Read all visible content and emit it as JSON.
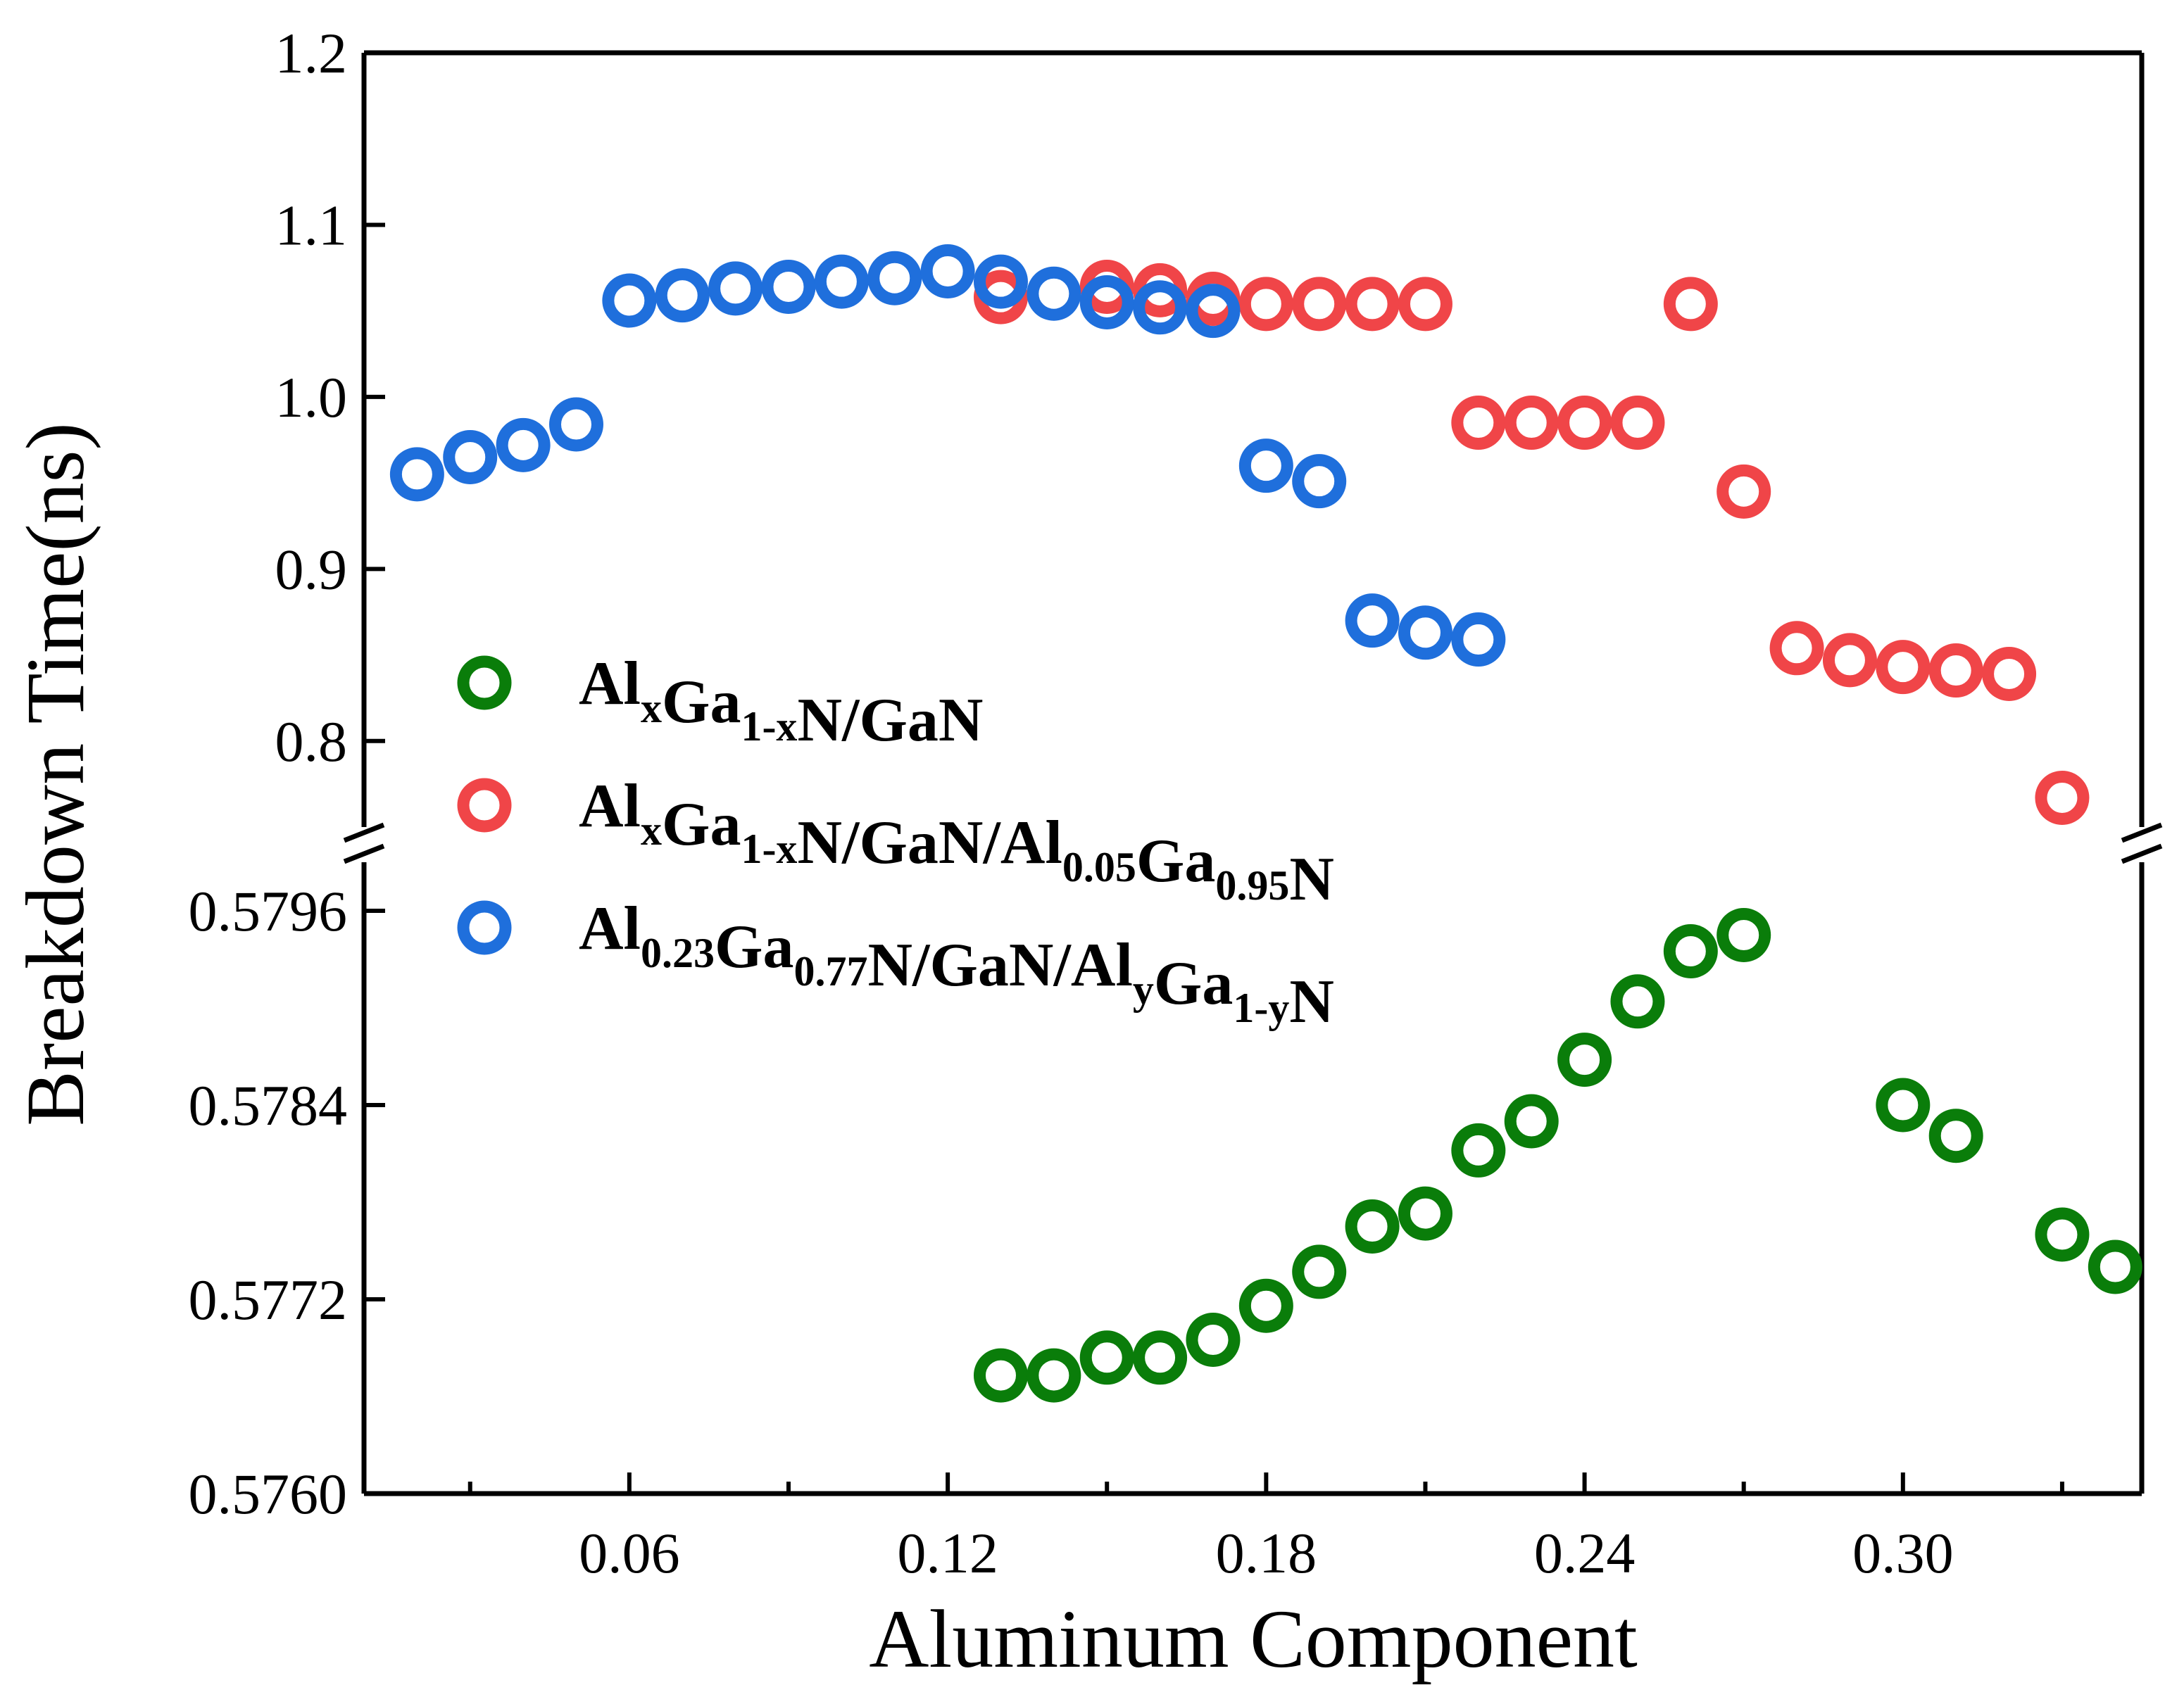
{
  "chart_data": {
    "type": "scatter",
    "xlabel": "Aluminum Component",
    "ylabel": "Breakdown Time(ns)",
    "xlim": [
      0.01,
      0.345
    ],
    "x_ticks": [
      {
        "value": 0.06,
        "label": "0.06"
      },
      {
        "value": 0.12,
        "label": "0.12"
      },
      {
        "value": 0.18,
        "label": "0.18"
      },
      {
        "value": 0.24,
        "label": "0.24"
      },
      {
        "value": 0.3,
        "label": "0.30"
      }
    ],
    "x_minor_ticks": [
      0.03,
      0.09,
      0.15,
      0.21,
      0.27,
      0.33
    ],
    "y_broken_axis": true,
    "upper_ylim": [
      0.75,
      1.2
    ],
    "upper_y_ticks": [
      {
        "value": 0.8,
        "label": "0.8"
      },
      {
        "value": 0.9,
        "label": "0.9"
      },
      {
        "value": 1.0,
        "label": "1.0"
      },
      {
        "value": 1.1,
        "label": "1.1"
      },
      {
        "value": 1.2,
        "label": "1.2"
      }
    ],
    "lower_ylim": [
      0.576,
      0.5799
    ],
    "lower_y_ticks": [
      {
        "value": 0.576,
        "label": "0.5760"
      },
      {
        "value": 0.5772,
        "label": "0.5772"
      },
      {
        "value": 0.5784,
        "label": "0.5784"
      },
      {
        "value": 0.5796,
        "label": "0.5796"
      }
    ],
    "series": [
      {
        "name": "AlxGa1-xN/GaN",
        "legend_parts": [
          {
            "text": "Al",
            "sub": false
          },
          {
            "text": "x",
            "sub": true
          },
          {
            "text": "Ga",
            "sub": false
          },
          {
            "text": "1-x",
            "sub": true
          },
          {
            "text": "N/GaN",
            "sub": false
          }
        ],
        "color": "#0a7d0a",
        "panel": "lower",
        "x": [
          0.13,
          0.14,
          0.15,
          0.16,
          0.17,
          0.18,
          0.19,
          0.2,
          0.21,
          0.22,
          0.23,
          0.24,
          0.25,
          0.26,
          0.27,
          0.3,
          0.31,
          0.33,
          0.34
        ],
        "y": [
          0.57673,
          0.57673,
          0.57684,
          0.57684,
          0.57695,
          0.57716,
          0.57737,
          0.57765,
          0.57773,
          0.57812,
          0.5783,
          0.57868,
          0.57904,
          0.57935,
          0.57945,
          0.5784,
          0.57821,
          0.5776,
          0.5774
        ]
      },
      {
        "name": "AlxGa1-xN/GaN/Al0.05Ga0.95N",
        "legend_parts": [
          {
            "text": "Al",
            "sub": false
          },
          {
            "text": "x",
            "sub": true
          },
          {
            "text": "Ga",
            "sub": false
          },
          {
            "text": "1-x",
            "sub": true
          },
          {
            "text": "N/GaN/Al",
            "sub": false
          },
          {
            "text": "0.05",
            "sub": true
          },
          {
            "text": "Ga",
            "sub": false
          },
          {
            "text": "0.95",
            "sub": true
          },
          {
            "text": "N",
            "sub": false
          }
        ],
        "color": "#f04548",
        "panel": "upper",
        "x": [
          0.13,
          0.15,
          0.16,
          0.17,
          0.18,
          0.19,
          0.2,
          0.21,
          0.22,
          0.23,
          0.24,
          0.25,
          0.26,
          0.27,
          0.28,
          0.29,
          0.3,
          0.31,
          0.32,
          0.33
        ],
        "y": [
          1.058,
          1.064,
          1.062,
          1.057,
          1.054,
          1.054,
          1.054,
          1.054,
          0.985,
          0.985,
          0.985,
          0.985,
          1.054,
          0.945,
          0.854,
          0.847,
          0.843,
          0.841,
          0.839,
          0.767
        ]
      },
      {
        "name": "Al0.23Ga0.77N/GaN/AlyGa1-yN",
        "legend_parts": [
          {
            "text": "Al",
            "sub": false
          },
          {
            "text": "0.23",
            "sub": true
          },
          {
            "text": "Ga",
            "sub": false
          },
          {
            "text": "0.77",
            "sub": true
          },
          {
            "text": "N/GaN/Al",
            "sub": false
          },
          {
            "text": "y",
            "sub": true
          },
          {
            "text": "Ga",
            "sub": false
          },
          {
            "text": "1-y",
            "sub": true
          },
          {
            "text": "N",
            "sub": false
          }
        ],
        "color": "#1f6fdc",
        "panel": "upper",
        "x": [
          0.02,
          0.03,
          0.04,
          0.05,
          0.06,
          0.07,
          0.08,
          0.09,
          0.1,
          0.11,
          0.12,
          0.13,
          0.14,
          0.15,
          0.16,
          0.17,
          0.18,
          0.19,
          0.2,
          0.21,
          0.22
        ],
        "y": [
          0.955,
          0.965,
          0.972,
          0.984,
          1.056,
          1.059,
          1.063,
          1.064,
          1.067,
          1.069,
          1.073,
          1.067,
          1.06,
          1.055,
          1.052,
          1.05,
          0.96,
          0.951,
          0.87,
          0.863,
          0.859
        ]
      }
    ]
  }
}
